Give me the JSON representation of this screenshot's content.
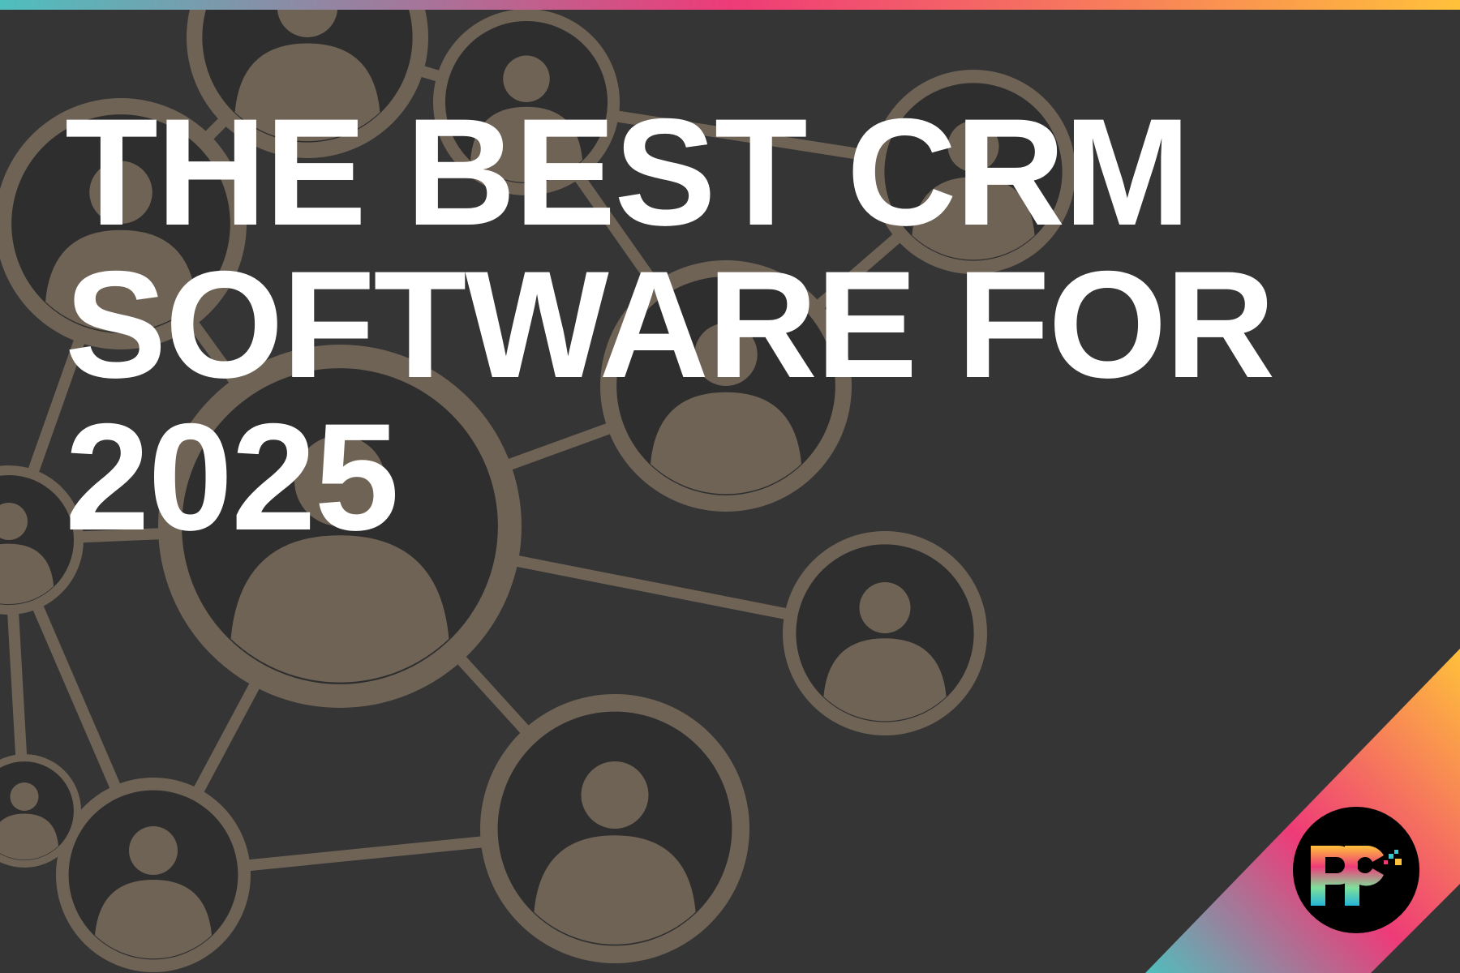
{
  "headline": {
    "lines": [
      "THE BEST CRM",
      "SOFTWARE FOR",
      "2025"
    ]
  },
  "logo": {
    "text": "pp",
    "icon": "pp-logo"
  },
  "colors": {
    "background": "#353535",
    "wood": "#6f6356",
    "gradient": [
      "#4fbfbd",
      "#ee3b78",
      "#ffc13a"
    ]
  }
}
